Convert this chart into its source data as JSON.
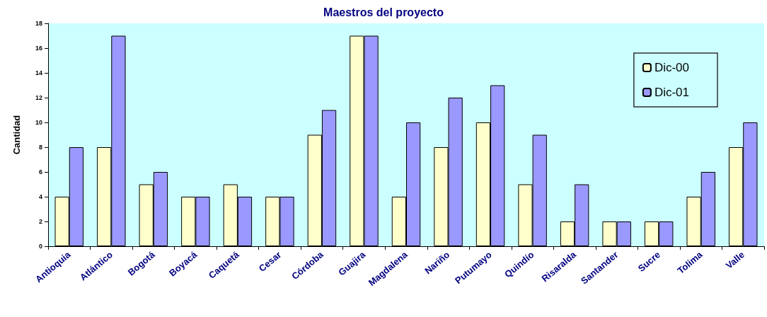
{
  "chart_data": {
    "type": "bar",
    "title": "Maestros del proyecto",
    "ylabel": "Cantidad",
    "categories": [
      "Antioquia",
      "Atlántico",
      "Bogotá",
      "Boyacá",
      "Caquetá",
      "Cesar",
      "Córdoba",
      "Guajira",
      "Magdalena",
      "Nariño",
      "Putumayo",
      "Quindío",
      "Risaralda",
      "Santander",
      "Sucre",
      "Tolima",
      "Valle"
    ],
    "series": [
      {
        "name": "Dic-00",
        "color": "#ffffcc",
        "values": [
          4,
          8,
          5,
          4,
          5,
          4,
          9,
          17,
          4,
          8,
          10,
          5,
          2,
          2,
          2,
          4,
          8
        ]
      },
      {
        "name": "Dic-01",
        "color": "#9999ff",
        "values": [
          8,
          17,
          6,
          4,
          4,
          4,
          11,
          17,
          10,
          12,
          13,
          9,
          5,
          2,
          2,
          6,
          10
        ]
      }
    ],
    "ylim": [
      0,
      18
    ],
    "yticks": [
      0,
      2,
      4,
      6,
      8,
      10,
      12,
      14,
      16,
      18
    ],
    "grid": false,
    "legend": "top right"
  }
}
